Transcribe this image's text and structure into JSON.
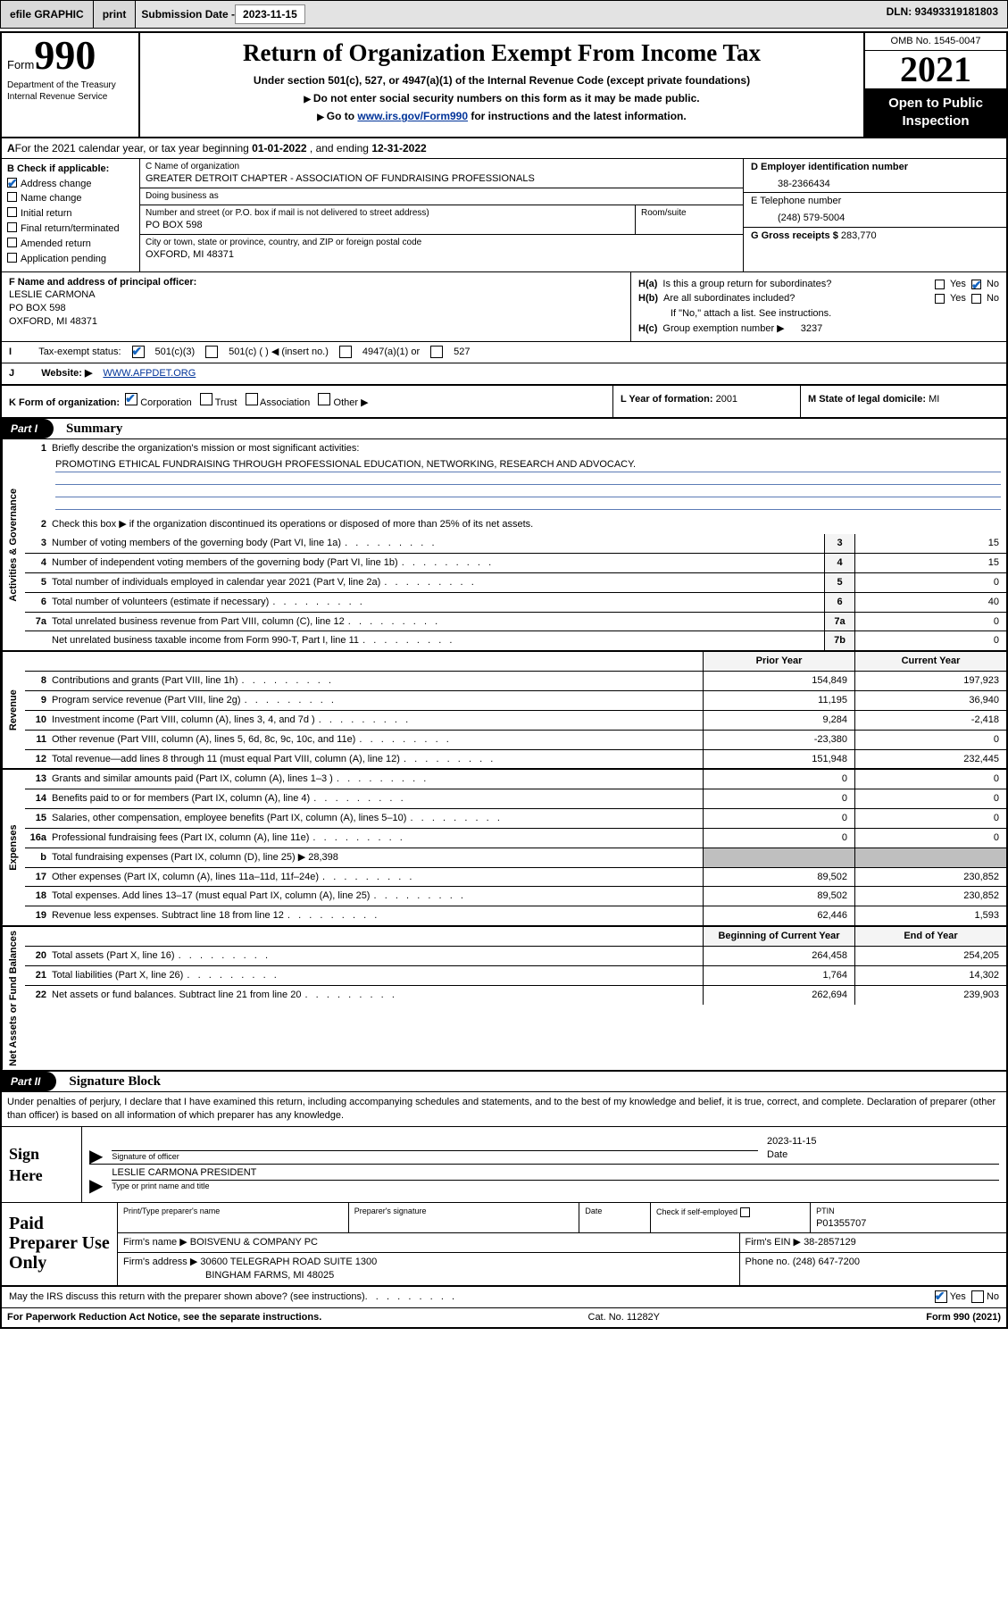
{
  "topbar": {
    "efile": "efile GRAPHIC",
    "print": "print",
    "subm_label": "Submission Date - ",
    "subm_date": "2023-11-15",
    "dln": "DLN: 93493319181803"
  },
  "hdr": {
    "form_word": "Form",
    "form_num": "990",
    "dept": "Department of the Treasury\nInternal Revenue Service",
    "title": "Return of Organization Exempt From Income Tax",
    "sub1": "Under section 501(c), 527, or 4947(a)(1) of the Internal Revenue Code (except private foundations)",
    "sub2": "Do not enter social security numbers on this form as it may be made public.",
    "sub3_pre": "Go to ",
    "sub3_link": "www.irs.gov/Form990",
    "sub3_post": " for instructions and the latest information.",
    "omb": "OMB No. 1545-0047",
    "year": "2021",
    "public": "Open to Public Inspection"
  },
  "A": {
    "text_pre": "For the 2021 calendar year, or tax year beginning ",
    "begin": "01-01-2022",
    "mid": "   , and ending ",
    "end": "12-31-2022"
  },
  "B": {
    "lead": "B Check if applicable:",
    "opts": [
      "Address change",
      "Name change",
      "Initial return",
      "Final return/terminated",
      "Amended return",
      "Application pending"
    ],
    "checked_index": 0
  },
  "C": {
    "name_label": "C Name of organization",
    "name": "GREATER DETROIT CHAPTER - ASSOCIATION OF FUNDRAISING PROFESSIONALS",
    "dba_label": "Doing business as",
    "dba": "",
    "street_label": "Number and street (or P.O. box if mail is not delivered to street address)",
    "suite_label": "Room/suite",
    "street": "PO BOX 598",
    "city_label": "City or town, state or province, country, and ZIP or foreign postal code",
    "city": "OXFORD, MI  48371"
  },
  "D": {
    "label": "D Employer identification number",
    "value": "38-2366434"
  },
  "E": {
    "label": "E Telephone number",
    "value": "(248) 579-5004"
  },
  "G": {
    "label": "G Gross receipts $",
    "value": "283,770"
  },
  "F": {
    "label": "F Name and address of principal officer:",
    "name": "LESLIE CARMONA",
    "addr1": "PO BOX 598",
    "addr2": "OXFORD, MI  48371"
  },
  "H": {
    "a": "Is this a group return for subordinates?",
    "b": "Are all subordinates included?",
    "b2": "If \"No,\" attach a list. See instructions.",
    "c_label": "Group exemption number ▶",
    "c_val": "3237",
    "yes": "Yes",
    "no": "No"
  },
  "I": {
    "label": "Tax-exempt status:",
    "opt1": "501(c)(3)",
    "opt2": "501(c) (   ) ◀ (insert no.)",
    "opt3": "4947(a)(1) or",
    "opt4": "527"
  },
  "J": {
    "label": "Website: ▶",
    "value": "WWW.AFPDET.ORG"
  },
  "K": {
    "label": "K Form of organization:",
    "opts": [
      "Corporation",
      "Trust",
      "Association",
      "Other ▶"
    ]
  },
  "L": {
    "label": "L Year of formation:",
    "value": "2001"
  },
  "M": {
    "label": "M State of legal domicile:",
    "value": "MI"
  },
  "part1": {
    "tag": "Part I",
    "title": "Summary",
    "q1": "Briefly describe the organization's mission or most significant activities:",
    "mission": "PROMOTING ETHICAL FUNDRAISING THROUGH PROFESSIONAL EDUCATION, NETWORKING, RESEARCH AND ADVOCACY.",
    "q2": "Check this box ▶      if the organization discontinued its operations or disposed of more than 25% of its net assets.",
    "sections": {
      "gov_label": "Activities & Governance",
      "rev_label": "Revenue",
      "exp_label": "Expenses",
      "net_label": "Net Assets or Fund Balances"
    },
    "gov_rows": [
      {
        "n": "3",
        "d": "Number of voting members of the governing body (Part VI, line 1a)",
        "c": "3",
        "v": "15"
      },
      {
        "n": "4",
        "d": "Number of independent voting members of the governing body (Part VI, line 1b)",
        "c": "4",
        "v": "15"
      },
      {
        "n": "5",
        "d": "Total number of individuals employed in calendar year 2021 (Part V, line 2a)",
        "c": "5",
        "v": "0"
      },
      {
        "n": "6",
        "d": "Total number of volunteers (estimate if necessary)",
        "c": "6",
        "v": "40"
      },
      {
        "n": "7a",
        "d": "Total unrelated business revenue from Part VIII, column (C), line 12",
        "c": "7a",
        "v": "0"
      },
      {
        "n": "",
        "d": "Net unrelated business taxable income from Form 990-T, Part I, line 11",
        "c": "7b",
        "v": "0"
      }
    ],
    "col_hdr_prior": "Prior Year",
    "col_hdr_curr": "Current Year",
    "rev_rows": [
      {
        "n": "8",
        "d": "Contributions and grants (Part VIII, line 1h)",
        "p": "154,849",
        "c": "197,923"
      },
      {
        "n": "9",
        "d": "Program service revenue (Part VIII, line 2g)",
        "p": "11,195",
        "c": "36,940"
      },
      {
        "n": "10",
        "d": "Investment income (Part VIII, column (A), lines 3, 4, and 7d )",
        "p": "9,284",
        "c": "-2,418"
      },
      {
        "n": "11",
        "d": "Other revenue (Part VIII, column (A), lines 5, 6d, 8c, 9c, 10c, and 11e)",
        "p": "-23,380",
        "c": "0"
      },
      {
        "n": "12",
        "d": "Total revenue—add lines 8 through 11 (must equal Part VIII, column (A), line 12)",
        "p": "151,948",
        "c": "232,445"
      }
    ],
    "exp_rows": [
      {
        "n": "13",
        "d": "Grants and similar amounts paid (Part IX, column (A), lines 1–3 )",
        "p": "0",
        "c": "0"
      },
      {
        "n": "14",
        "d": "Benefits paid to or for members (Part IX, column (A), line 4)",
        "p": "0",
        "c": "0"
      },
      {
        "n": "15",
        "d": "Salaries, other compensation, employee benefits (Part IX, column (A), lines 5–10)",
        "p": "0",
        "c": "0"
      },
      {
        "n": "16a",
        "d": "Professional fundraising fees (Part IX, column (A), line 11e)",
        "p": "0",
        "c": "0"
      }
    ],
    "exp_b": {
      "n": "b",
      "d": "Total fundraising expenses (Part IX, column (D), line 25) ▶",
      "inline": "28,398"
    },
    "exp_rows2": [
      {
        "n": "17",
        "d": "Other expenses (Part IX, column (A), lines 11a–11d, 11f–24e)",
        "p": "89,502",
        "c": "230,852"
      },
      {
        "n": "18",
        "d": "Total expenses. Add lines 13–17 (must equal Part IX, column (A), line 25)",
        "p": "89,502",
        "c": "230,852"
      },
      {
        "n": "19",
        "d": "Revenue less expenses. Subtract line 18 from line 12",
        "p": "62,446",
        "c": "1,593"
      }
    ],
    "net_hdr_b": "Beginning of Current Year",
    "net_hdr_e": "End of Year",
    "net_rows": [
      {
        "n": "20",
        "d": "Total assets (Part X, line 16)",
        "p": "264,458",
        "c": "254,205"
      },
      {
        "n": "21",
        "d": "Total liabilities (Part X, line 26)",
        "p": "1,764",
        "c": "14,302"
      },
      {
        "n": "22",
        "d": "Net assets or fund balances. Subtract line 21 from line 20",
        "p": "262,694",
        "c": "239,903"
      }
    ]
  },
  "part2": {
    "tag": "Part II",
    "title": "Signature Block",
    "decl": "Under penalties of perjury, I declare that I have examined this return, including accompanying schedules and statements, and to the best of my knowledge and belief, it is true, correct, and complete. Declaration of preparer (other than officer) is based on all information of which preparer has any knowledge.",
    "sign_here": "Sign Here",
    "sig_officer_lbl": "Signature of officer",
    "sig_date_lbl": "Date",
    "sig_date": "2023-11-15",
    "sig_name": "LESLIE CARMONA  PRESIDENT",
    "sig_name_lbl": "Type or print name and title",
    "prep_left": "Paid Preparer Use Only",
    "prep": {
      "name_lbl": "Print/Type preparer's name",
      "sig_lbl": "Preparer's signature",
      "date_lbl": "Date",
      "check_lbl": "Check         if self-employed",
      "ptin_lbl": "PTIN",
      "ptin": "P01355707",
      "firm_name_lbl": "Firm's name    ▶",
      "firm_name": "BOISVENU & COMPANY PC",
      "firm_ein_lbl": "Firm's EIN ▶",
      "firm_ein": "38-2857129",
      "firm_addr_lbl": "Firm's address ▶",
      "firm_addr1": "30600 TELEGRAPH ROAD SUITE 1300",
      "firm_addr2": "BINGHAM FARMS, MI  48025",
      "phone_lbl": "Phone no.",
      "phone": "(248) 647-7200"
    },
    "discuss": "May the IRS discuss this return with the preparer shown above? (see instructions)",
    "discuss_yes": "Yes",
    "discuss_no": "No"
  },
  "footer": {
    "left": "For Paperwork Reduction Act Notice, see the separate instructions.",
    "mid": "Cat. No. 11282Y",
    "right": "Form 990 (2021)"
  }
}
